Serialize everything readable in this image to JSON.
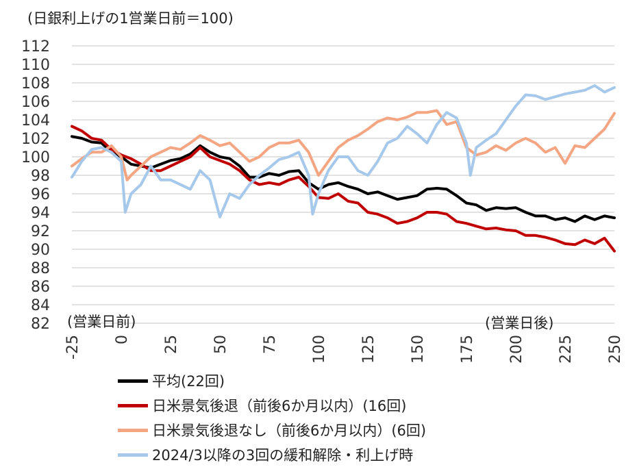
{
  "chart_data": {
    "type": "line",
    "title": "(日銀利上げの1営業日前＝100)",
    "annotations": {
      "before": "(営業日前)",
      "after": "(営業日後)"
    },
    "xlim": [
      -25,
      250
    ],
    "ylim": [
      82,
      112
    ],
    "xticks": [
      -25,
      0,
      25,
      50,
      75,
      100,
      125,
      150,
      175,
      200,
      225,
      250
    ],
    "yticks": [
      82,
      84,
      86,
      88,
      90,
      92,
      94,
      96,
      98,
      100,
      102,
      104,
      106,
      108,
      110,
      112
    ],
    "grid": "horizontal",
    "legend_position": "bottom",
    "series": [
      {
        "name": "平均(22回)",
        "color": "#000000",
        "points": [
          [
            -25,
            102.2
          ],
          [
            -20,
            102
          ],
          [
            -15,
            101.6
          ],
          [
            -10,
            101.5
          ],
          [
            -5,
            100.5
          ],
          [
            0,
            100
          ],
          [
            5,
            99.2
          ],
          [
            10,
            99
          ],
          [
            15,
            98.8
          ],
          [
            20,
            99.2
          ],
          [
            25,
            99.6
          ],
          [
            30,
            99.8
          ],
          [
            35,
            100.3
          ],
          [
            40,
            101.2
          ],
          [
            45,
            100.5
          ],
          [
            50,
            100
          ],
          [
            55,
            99.8
          ],
          [
            60,
            99
          ],
          [
            65,
            97.8
          ],
          [
            70,
            97.8
          ],
          [
            75,
            98.2
          ],
          [
            80,
            98
          ],
          [
            85,
            98.4
          ],
          [
            90,
            98.5
          ],
          [
            95,
            97.2
          ],
          [
            100,
            96.5
          ],
          [
            105,
            97
          ],
          [
            110,
            97.2
          ],
          [
            115,
            96.8
          ],
          [
            120,
            96.5
          ],
          [
            125,
            96
          ],
          [
            130,
            96.2
          ],
          [
            135,
            95.8
          ],
          [
            140,
            95.4
          ],
          [
            145,
            95.6
          ],
          [
            150,
            95.8
          ],
          [
            155,
            96.5
          ],
          [
            160,
            96.6
          ],
          [
            165,
            96.5
          ],
          [
            170,
            95.8
          ],
          [
            175,
            95
          ],
          [
            180,
            94.8
          ],
          [
            185,
            94.2
          ],
          [
            190,
            94.5
          ],
          [
            195,
            94.4
          ],
          [
            200,
            94.5
          ],
          [
            205,
            94
          ],
          [
            210,
            93.6
          ],
          [
            215,
            93.6
          ],
          [
            220,
            93.2
          ],
          [
            225,
            93.4
          ],
          [
            230,
            93
          ],
          [
            235,
            93.6
          ],
          [
            240,
            93.2
          ],
          [
            245,
            93.6
          ],
          [
            250,
            93.4
          ]
        ]
      },
      {
        "name": "日米景気後退（前後6か月以内）(16回)",
        "color": "#c00000",
        "points": [
          [
            -25,
            103.3
          ],
          [
            -20,
            102.8
          ],
          [
            -15,
            102
          ],
          [
            -10,
            101.8
          ],
          [
            -5,
            100.8
          ],
          [
            0,
            100.2
          ],
          [
            5,
            99.8
          ],
          [
            10,
            99.2
          ],
          [
            15,
            98.5
          ],
          [
            20,
            98.5
          ],
          [
            25,
            99
          ],
          [
            30,
            99.5
          ],
          [
            35,
            100
          ],
          [
            40,
            101
          ],
          [
            45,
            100
          ],
          [
            50,
            99.6
          ],
          [
            55,
            99.2
          ],
          [
            60,
            98.5
          ],
          [
            65,
            97.5
          ],
          [
            70,
            97
          ],
          [
            75,
            97.2
          ],
          [
            80,
            97
          ],
          [
            85,
            97.5
          ],
          [
            90,
            97.8
          ],
          [
            95,
            96.8
          ],
          [
            100,
            95.6
          ],
          [
            105,
            95.5
          ],
          [
            110,
            96
          ],
          [
            115,
            95.2
          ],
          [
            120,
            95
          ],
          [
            125,
            94
          ],
          [
            130,
            93.8
          ],
          [
            135,
            93.4
          ],
          [
            140,
            92.8
          ],
          [
            145,
            93
          ],
          [
            150,
            93.4
          ],
          [
            155,
            94
          ],
          [
            160,
            94
          ],
          [
            165,
            93.8
          ],
          [
            170,
            93
          ],
          [
            175,
            92.8
          ],
          [
            180,
            92.5
          ],
          [
            185,
            92.2
          ],
          [
            190,
            92.3
          ],
          [
            195,
            92.1
          ],
          [
            200,
            92
          ],
          [
            205,
            91.5
          ],
          [
            210,
            91.5
          ],
          [
            215,
            91.3
          ],
          [
            220,
            91
          ],
          [
            225,
            90.6
          ],
          [
            230,
            90.5
          ],
          [
            235,
            91
          ],
          [
            240,
            90.6
          ],
          [
            245,
            91.2
          ],
          [
            250,
            89.8
          ]
        ]
      },
      {
        "name": "日米景気後退なし（前後6か月以内）(6回)",
        "color": "#f4a582",
        "points": [
          [
            -25,
            99
          ],
          [
            -20,
            99.8
          ],
          [
            -15,
            100.5
          ],
          [
            -10,
            100.5
          ],
          [
            -5,
            101.2
          ],
          [
            0,
            100
          ],
          [
            3,
            97.5
          ],
          [
            5,
            98
          ],
          [
            10,
            99
          ],
          [
            15,
            100
          ],
          [
            20,
            100.5
          ],
          [
            25,
            101
          ],
          [
            30,
            100.8
          ],
          [
            35,
            101.5
          ],
          [
            40,
            102.3
          ],
          [
            45,
            101.8
          ],
          [
            50,
            101.2
          ],
          [
            55,
            101.5
          ],
          [
            60,
            100.5
          ],
          [
            65,
            99.5
          ],
          [
            70,
            100
          ],
          [
            75,
            101
          ],
          [
            80,
            101.5
          ],
          [
            85,
            101.5
          ],
          [
            90,
            101.8
          ],
          [
            95,
            100.5
          ],
          [
            100,
            98
          ],
          [
            105,
            99.5
          ],
          [
            110,
            101
          ],
          [
            115,
            101.8
          ],
          [
            120,
            102.3
          ],
          [
            125,
            103
          ],
          [
            130,
            103.8
          ],
          [
            135,
            104.2
          ],
          [
            140,
            104
          ],
          [
            145,
            104.3
          ],
          [
            150,
            104.8
          ],
          [
            155,
            104.8
          ],
          [
            160,
            105
          ],
          [
            165,
            103.5
          ],
          [
            170,
            103.8
          ],
          [
            175,
            101
          ],
          [
            180,
            100.2
          ],
          [
            185,
            100.5
          ],
          [
            190,
            101.2
          ],
          [
            195,
            100.7
          ],
          [
            200,
            101.5
          ],
          [
            205,
            102
          ],
          [
            210,
            101.5
          ],
          [
            215,
            100.5
          ],
          [
            220,
            101
          ],
          [
            225,
            99.3
          ],
          [
            230,
            101.2
          ],
          [
            235,
            101
          ],
          [
            240,
            102
          ],
          [
            245,
            103
          ],
          [
            250,
            104.7
          ]
        ]
      },
      {
        "name": "2024/3以降の3回の緩和解除・利上げ時",
        "color": "#a6c8ea",
        "points": [
          [
            -25,
            97.8
          ],
          [
            -20,
            99.5
          ],
          [
            -15,
            100.8
          ],
          [
            -10,
            101
          ],
          [
            -5,
            100.5
          ],
          [
            0,
            99.5
          ],
          [
            2,
            94
          ],
          [
            5,
            96
          ],
          [
            10,
            97
          ],
          [
            15,
            99
          ],
          [
            20,
            97.5
          ],
          [
            25,
            97.5
          ],
          [
            30,
            97
          ],
          [
            35,
            96.5
          ],
          [
            40,
            98.5
          ],
          [
            45,
            97.5
          ],
          [
            50,
            93.5
          ],
          [
            55,
            96
          ],
          [
            60,
            95.5
          ],
          [
            65,
            97
          ],
          [
            70,
            98
          ],
          [
            75,
            98.8
          ],
          [
            80,
            99.7
          ],
          [
            85,
            100
          ],
          [
            90,
            100.5
          ],
          [
            95,
            98
          ],
          [
            97,
            93.8
          ],
          [
            100,
            96
          ],
          [
            105,
            98.5
          ],
          [
            110,
            100
          ],
          [
            115,
            100
          ],
          [
            120,
            98.5
          ],
          [
            125,
            98
          ],
          [
            130,
            99.5
          ],
          [
            135,
            101.5
          ],
          [
            140,
            102
          ],
          [
            145,
            103.3
          ],
          [
            150,
            102.5
          ],
          [
            155,
            101.5
          ],
          [
            160,
            103.5
          ],
          [
            165,
            104.8
          ],
          [
            170,
            104.2
          ],
          [
            175,
            101.5
          ],
          [
            177,
            98
          ],
          [
            180,
            101
          ],
          [
            185,
            101.8
          ],
          [
            190,
            102.5
          ],
          [
            195,
            104
          ],
          [
            200,
            105.5
          ],
          [
            205,
            106.7
          ],
          [
            210,
            106.6
          ],
          [
            215,
            106.2
          ],
          [
            220,
            106.5
          ],
          [
            225,
            106.8
          ],
          [
            230,
            107
          ],
          [
            235,
            107.2
          ],
          [
            240,
            107.7
          ],
          [
            245,
            107
          ],
          [
            250,
            107.5
          ]
        ]
      }
    ]
  }
}
